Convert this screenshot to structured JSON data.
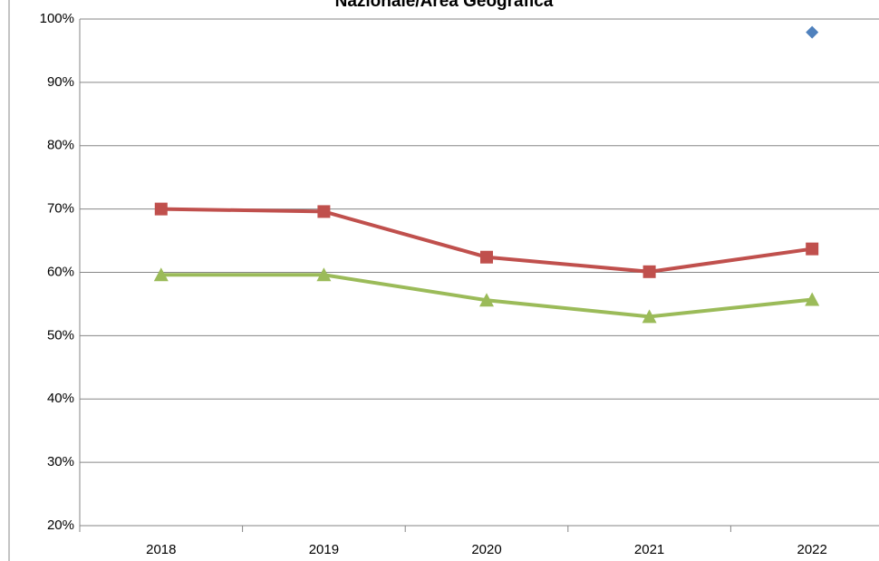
{
  "chart_data": {
    "type": "line",
    "title": "Nazionale/Area Geografica",
    "categories": [
      "2018",
      "2019",
      "2020",
      "2021",
      "2022"
    ],
    "series": [
      {
        "color": "#4f81bd",
        "marker": "diamond",
        "values": [
          null,
          null,
          null,
          null,
          97.9
        ]
      },
      {
        "color": "#c0504d",
        "marker": "square",
        "values": [
          70.0,
          69.6,
          62.4,
          60.1,
          63.7
        ]
      },
      {
        "color": "#9bbb59",
        "marker": "triangle",
        "values": [
          59.6,
          59.6,
          55.6,
          53.0,
          55.7
        ]
      }
    ],
    "ylim": [
      20,
      100
    ],
    "yticks": [
      {
        "value": 20,
        "label": "20%"
      },
      {
        "value": 30,
        "label": "30%"
      },
      {
        "value": 40,
        "label": "40%"
      },
      {
        "value": 50,
        "label": "50%"
      },
      {
        "value": 60,
        "label": "60%"
      },
      {
        "value": 70,
        "label": "70%"
      },
      {
        "value": 80,
        "label": "80%"
      },
      {
        "value": 90,
        "label": "90%"
      },
      {
        "value": 100,
        "label": "100%"
      }
    ],
    "grid": true
  }
}
